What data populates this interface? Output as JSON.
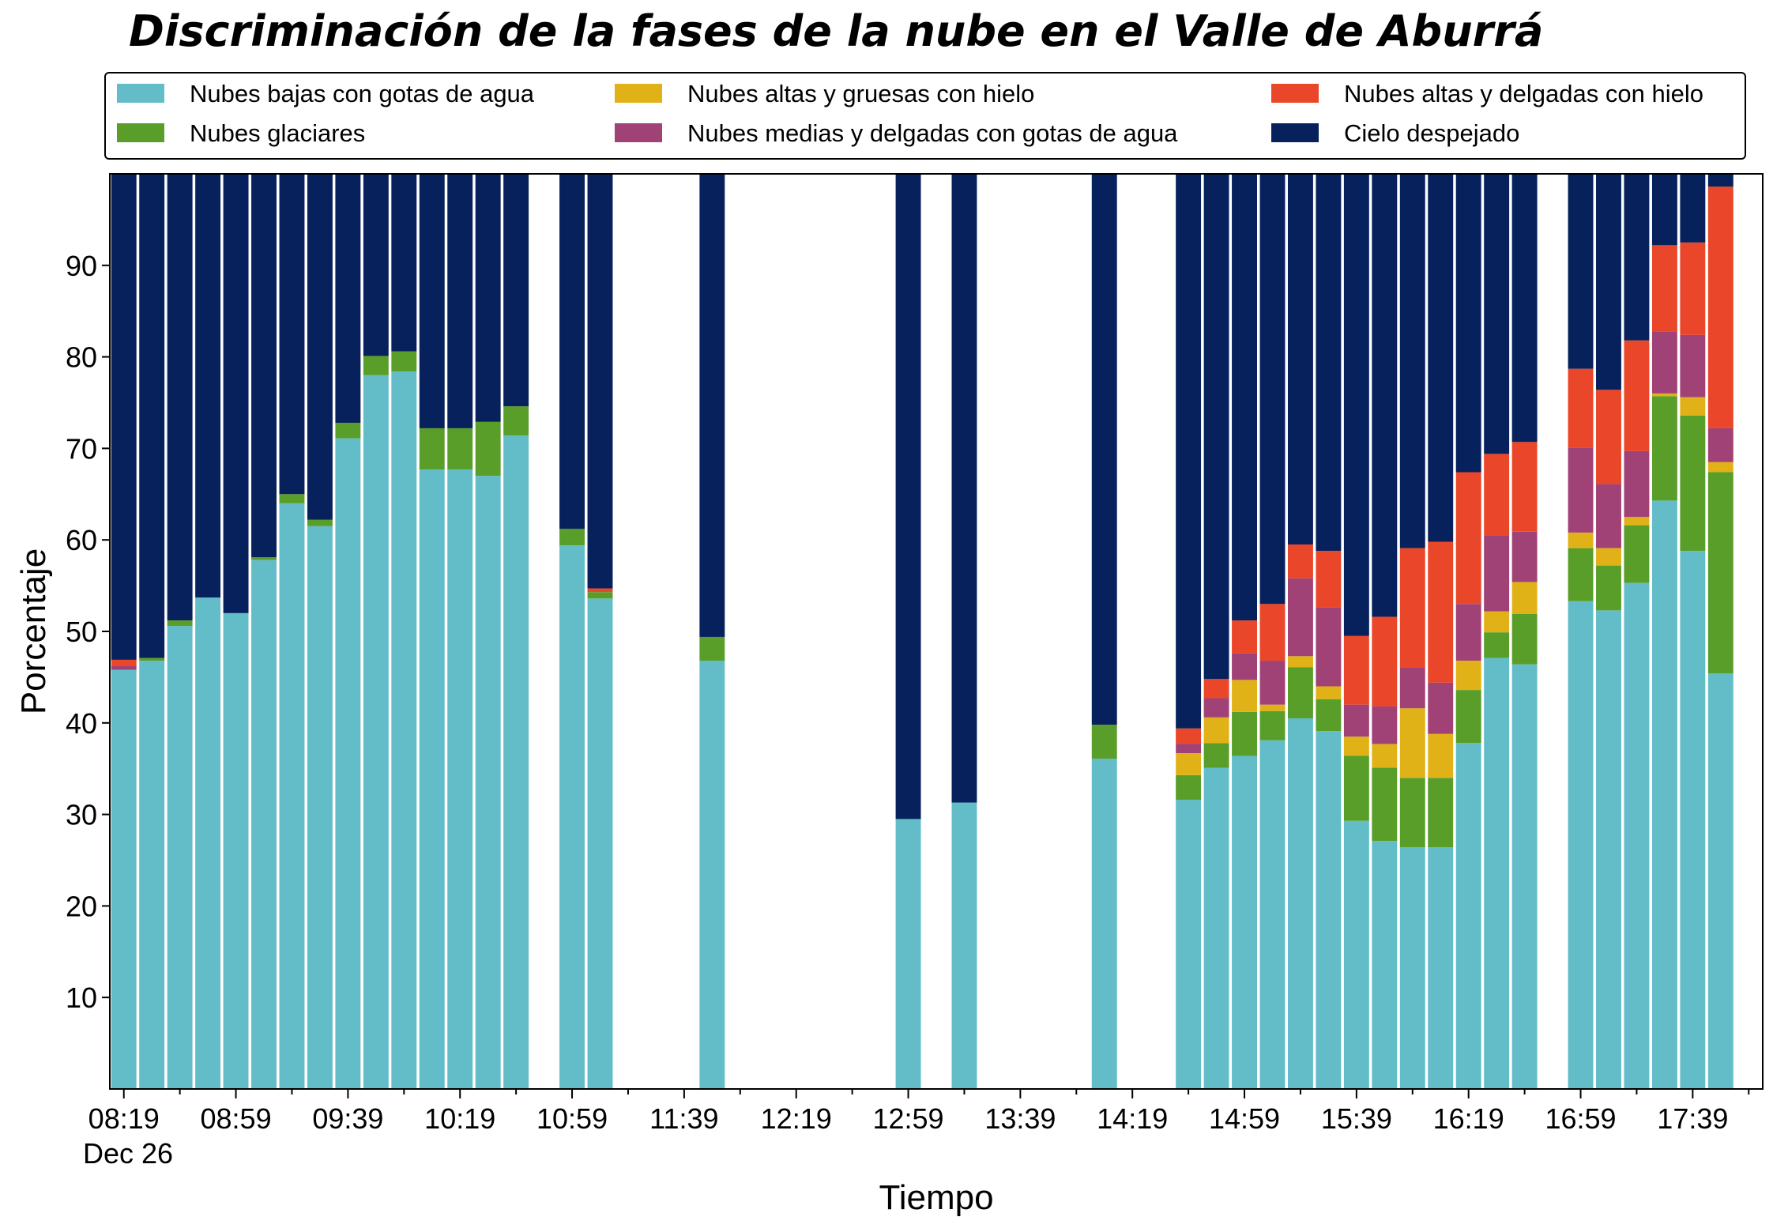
{
  "chart_data": {
    "type": "bar",
    "stacked": true,
    "title": "Discriminación de la fases de la nube en el Valle de Aburrá",
    "xlabel": "Tiempo",
    "ylabel": "Porcentaje",
    "ylim": [
      0,
      100
    ],
    "yticks": [
      10,
      20,
      30,
      40,
      50,
      60,
      70,
      80,
      90
    ],
    "xlim": [
      0,
      59
    ],
    "xtick_labels": [
      "08:19",
      "08:59",
      "09:39",
      "10:19",
      "10:59",
      "11:39",
      "12:19",
      "12:59",
      "13:39",
      "14:19",
      "14:59",
      "15:39",
      "16:19",
      "16:59",
      "17:39"
    ],
    "xtick_date_label": "Dec 26",
    "grid": false,
    "legend": {
      "placement": "top",
      "columns": 3
    },
    "series": [
      {
        "name": "Nubes bajas con gotas de agua",
        "color": "#63bdc9"
      },
      {
        "name": "Nubes glaciares",
        "color": "#5a9e2a"
      },
      {
        "name": "Nubes altas y gruesas con hielo",
        "color": "#e1b217"
      },
      {
        "name": "Nubes medias y delgadas con gotas de agua",
        "color": "#a14277"
      },
      {
        "name": "Nubes altas y delgadas con hielo",
        "color": "#ea4629"
      },
      {
        "name": "Cielo despejado",
        "color": "#06215b"
      }
    ],
    "bar_columns": [
      "slot",
      "Nubes bajas con gotas de agua",
      "Nubes glaciares",
      "Nubes altas y gruesas con hielo",
      "Nubes medias y delgadas con gotas de agua",
      "Nubes altas y delgadas con hielo",
      "Cielo despejado"
    ],
    "bars": [
      [
        0,
        45.8,
        0,
        0,
        0.4,
        0.7,
        53.1
      ],
      [
        1,
        46.8,
        0.3,
        0,
        0,
        0,
        52.9
      ],
      [
        2,
        50.6,
        0.6,
        0,
        0,
        0,
        48.8
      ],
      [
        3,
        53.7,
        0,
        0,
        0,
        0,
        46.3
      ],
      [
        4,
        52.0,
        0,
        0,
        0,
        0,
        48.0
      ],
      [
        5,
        57.8,
        0.3,
        0,
        0,
        0,
        41.9
      ],
      [
        6,
        64.0,
        1.0,
        0,
        0,
        0,
        35.0
      ],
      [
        7,
        61.5,
        0.7,
        0,
        0,
        0,
        37.8
      ],
      [
        8,
        71.1,
        1.7,
        0,
        0,
        0,
        27.2
      ],
      [
        9,
        78.0,
        2.1,
        0,
        0,
        0,
        19.9
      ],
      [
        10,
        78.4,
        2.2,
        0,
        0,
        0,
        19.4
      ],
      [
        11,
        67.7,
        4.5,
        0,
        0,
        0,
        27.8
      ],
      [
        12,
        67.7,
        4.5,
        0,
        0,
        0,
        27.8
      ],
      [
        13,
        67.0,
        5.9,
        0,
        0,
        0,
        27.1
      ],
      [
        14,
        71.4,
        3.2,
        0,
        0,
        0,
        25.4
      ],
      [
        16,
        59.4,
        1.8,
        0,
        0,
        0,
        38.8
      ],
      [
        17,
        53.6,
        0.7,
        0,
        0,
        0.4,
        45.3
      ],
      [
        21,
        46.8,
        2.6,
        0,
        0,
        0,
        50.6
      ],
      [
        28,
        29.5,
        0,
        0,
        0,
        0,
        70.5
      ],
      [
        30,
        31.3,
        0,
        0,
        0,
        0,
        68.7
      ],
      [
        35,
        36.1,
        3.7,
        0,
        0,
        0,
        60.2
      ],
      [
        38,
        31.6,
        2.7,
        2.4,
        1.0,
        1.7,
        60.6
      ],
      [
        39,
        35.1,
        2.7,
        2.8,
        2.1,
        2.1,
        55.2
      ],
      [
        40,
        36.4,
        4.8,
        3.5,
        2.9,
        3.6,
        48.8
      ],
      [
        41,
        38.1,
        3.2,
        0.7,
        4.8,
        6.2,
        47.0
      ],
      [
        42,
        40.5,
        5.6,
        1.2,
        8.5,
        3.7,
        40.5
      ],
      [
        43,
        39.1,
        3.5,
        1.4,
        8.6,
        6.2,
        41.2
      ],
      [
        44,
        29.3,
        7.1,
        2.1,
        3.5,
        7.5,
        50.5
      ],
      [
        45,
        27.1,
        8.0,
        2.6,
        4.1,
        9.8,
        48.4
      ],
      [
        46,
        26.4,
        7.6,
        7.6,
        4.5,
        13.0,
        40.9
      ],
      [
        47,
        26.4,
        7.6,
        4.8,
        5.6,
        15.4,
        40.2
      ],
      [
        48,
        37.8,
        5.8,
        3.2,
        6.2,
        14.4,
        32.6
      ],
      [
        49,
        47.1,
        2.8,
        2.3,
        8.3,
        8.9,
        30.6
      ],
      [
        50,
        46.4,
        5.5,
        3.5,
        5.5,
        9.8,
        29.3
      ],
      [
        52,
        53.3,
        5.8,
        1.7,
        9.3,
        8.6,
        21.3
      ],
      [
        53,
        52.3,
        4.9,
        1.9,
        7.0,
        10.3,
        23.6
      ],
      [
        54,
        55.3,
        6.3,
        0.9,
        7.2,
        12.1,
        18.2
      ],
      [
        55,
        64.3,
        11.4,
        0.3,
        6.8,
        9.4,
        7.8
      ],
      [
        56,
        58.8,
        14.8,
        2.0,
        6.8,
        10.1,
        7.5
      ],
      [
        57,
        45.4,
        22.0,
        1.1,
        3.7,
        26.4,
        1.4
      ]
    ]
  }
}
